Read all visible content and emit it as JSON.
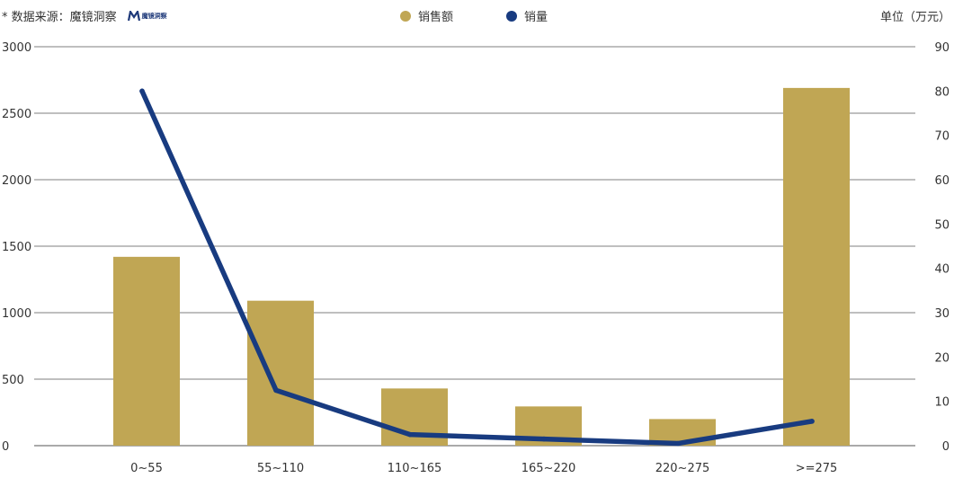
{
  "source_label": "* 数据来源：魔镜洞察",
  "logo_text": "魔镜洞察",
  "unit_label": "单位（万元）",
  "colors": {
    "bar": "#c0a654",
    "line": "#183b80",
    "grid": "#555555"
  },
  "chart_data": {
    "type": "bar",
    "categories": [
      "0~55",
      "55~110",
      "110~165",
      "165~220",
      "220~275",
      ">=275"
    ],
    "series": [
      {
        "name": "销售额",
        "type": "bar",
        "axis": "left",
        "values": [
          1420,
          1090,
          430,
          295,
          200,
          2690
        ]
      },
      {
        "name": "销量",
        "type": "line",
        "axis": "right",
        "values": [
          80,
          12.5,
          2.5,
          1.5,
          0.5,
          5.5
        ]
      }
    ],
    "y_left": {
      "ylim": [
        0,
        3000
      ],
      "ticks": [
        0,
        500,
        1000,
        1500,
        2000,
        2500,
        3000
      ]
    },
    "y_right": {
      "ylim": [
        0,
        90
      ],
      "ticks": [
        0,
        10,
        20,
        30,
        40,
        50,
        60,
        70,
        80,
        90
      ]
    },
    "grid": true,
    "legend_position": "top-center"
  }
}
